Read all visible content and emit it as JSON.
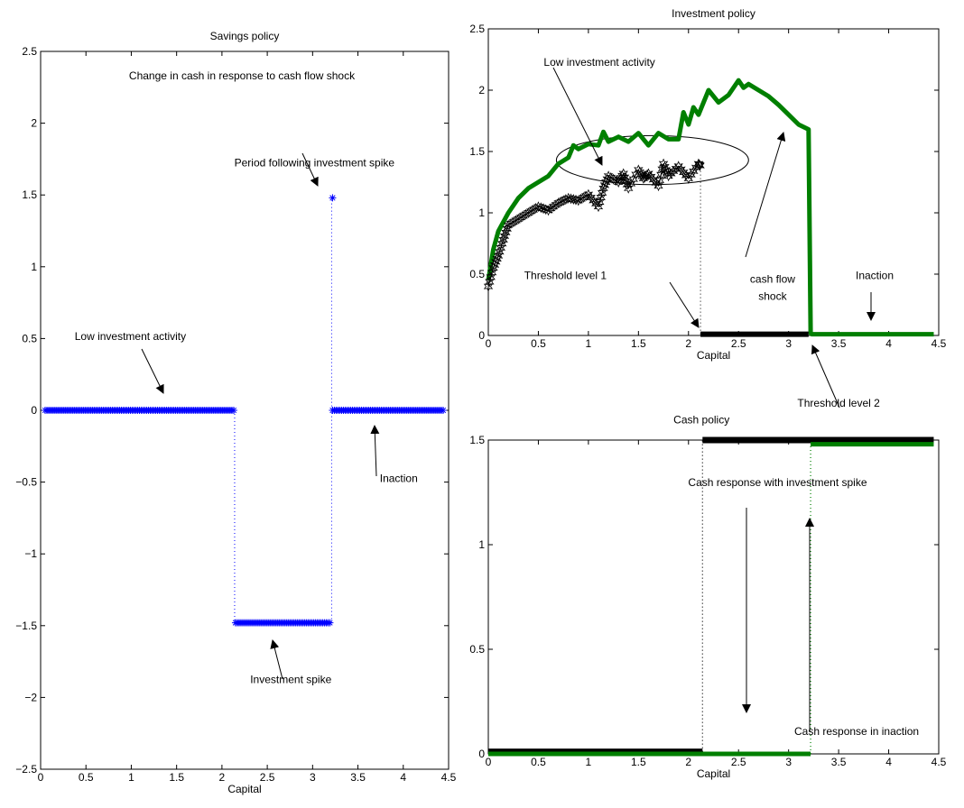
{
  "chart_data": [
    {
      "type": "scatter",
      "title": "Savings policy",
      "subtitle": "Change in cash in response to cash flow shock",
      "xlabel": "Capital",
      "ylabel": "",
      "xlim": [
        0,
        4.5
      ],
      "ylim": [
        -2.5,
        2.5
      ],
      "xticks": [
        "0",
        "0.5",
        "1",
        "1.5",
        "2",
        "2.5",
        "3",
        "3.5",
        "4",
        "4.5"
      ],
      "yticks": [
        "2.5",
        "2",
        "1.5",
        "1",
        "0.5",
        "0",
        "−0.5",
        "−1",
        "−1.5",
        "−2",
        "−2.5"
      ],
      "marker": "*",
      "color": "#0000ff",
      "segments": [
        {
          "x0": 0.05,
          "x1": 2.13,
          "y": 0
        },
        {
          "x0": 2.15,
          "x1": 3.2,
          "y": -1.48
        },
        {
          "x0": 3.22,
          "x1": 4.45,
          "y": 0
        }
      ],
      "points": [
        [
          3.22,
          1.48
        ]
      ],
      "dotted_lines": [
        {
          "x": 2.14,
          "y0": 0,
          "y1": -1.48
        },
        {
          "x": 3.21,
          "y0": -1.48,
          "y1": 1.48
        }
      ],
      "annotations": [
        {
          "text": "Period following investment spike",
          "x": 3.02,
          "y": 1.7
        },
        {
          "text": "Low investment activity",
          "x": 0.99,
          "y": 0.49
        },
        {
          "text": "Investment spike",
          "x": 2.76,
          "y": -1.9
        },
        {
          "text": "Inaction",
          "x": 3.95,
          "y": -0.5
        }
      ],
      "grid": false
    },
    {
      "type": "line",
      "title": "Investment policy",
      "xlabel": "Capital",
      "ylabel": "",
      "xlim": [
        0,
        4.5
      ],
      "ylim": [
        0,
        2.5
      ],
      "xticks": [
        "0",
        "0.5",
        "1",
        "1.5",
        "2",
        "2.5",
        "3",
        "3.5",
        "4",
        "4.5"
      ],
      "yticks": [
        "2.5",
        "2",
        "1.5",
        "1",
        "0.5",
        "0"
      ],
      "series": [
        {
          "color": "#007f00",
          "x": [
            0.0,
            0.05,
            0.1,
            0.2,
            0.3,
            0.4,
            0.5,
            0.6,
            0.7,
            0.8,
            0.85,
            0.9,
            1.0,
            1.1,
            1.15,
            1.2,
            1.3,
            1.4,
            1.5,
            1.6,
            1.7,
            1.8,
            1.9,
            1.95,
            2.0,
            2.05,
            2.1,
            2.2,
            2.3,
            2.4,
            2.5,
            2.55,
            2.6,
            2.7,
            2.8,
            2.9,
            3.0,
            3.1,
            3.2,
            3.22,
            3.23,
            4.45
          ],
          "values": [
            0.45,
            0.7,
            0.85,
            1.0,
            1.12,
            1.2,
            1.25,
            1.3,
            1.4,
            1.45,
            1.55,
            1.52,
            1.56,
            1.55,
            1.66,
            1.58,
            1.62,
            1.58,
            1.65,
            1.55,
            1.65,
            1.6,
            1.6,
            1.82,
            1.72,
            1.86,
            1.8,
            2.0,
            1.9,
            1.96,
            2.08,
            2.02,
            2.05,
            2.0,
            1.95,
            1.88,
            1.8,
            1.72,
            1.68,
            0.02,
            0.01,
            0.01
          ],
          "width": 5
        },
        {
          "color": "#000000",
          "marker": "hexagram",
          "x": [
            0.0,
            0.05,
            0.1,
            0.15,
            0.2,
            0.3,
            0.4,
            0.5,
            0.6,
            0.7,
            0.8,
            0.9,
            1.0,
            1.1,
            1.15,
            1.2,
            1.3,
            1.35,
            1.4,
            1.5,
            1.55,
            1.6,
            1.7,
            1.75,
            1.8,
            1.9,
            2.0,
            2.1,
            2.12
          ],
          "values": [
            0.4,
            0.55,
            0.65,
            0.78,
            0.9,
            0.95,
            1.0,
            1.05,
            1.02,
            1.08,
            1.12,
            1.1,
            1.15,
            1.05,
            1.2,
            1.3,
            1.25,
            1.32,
            1.2,
            1.35,
            1.28,
            1.32,
            1.22,
            1.4,
            1.3,
            1.38,
            1.28,
            1.4,
            1.38
          ],
          "width": 1.2
        },
        {
          "color": "#000000",
          "x": [
            2.12,
            3.2
          ],
          "values": [
            0.01,
            0.01
          ],
          "width": 6
        }
      ],
      "dotted_lines": [
        {
          "x": 2.12,
          "y0": 0.01,
          "y1": 1.38
        }
      ],
      "ellipse": {
        "cx": 1.64,
        "cy": 1.43,
        "rx": 0.96,
        "ry": 0.2
      },
      "annotations": [
        {
          "text": "Low investment activity",
          "x": 1.11,
          "y": 2.2
        },
        {
          "text": "Threshold level 1",
          "x": 0.77,
          "y": 0.46
        },
        {
          "text": "cash flow",
          "x": 2.84,
          "y": 0.43
        },
        {
          "text": "shock",
          "x": 2.84,
          "y": 0.29
        },
        {
          "text": "Inaction",
          "x": 3.86,
          "y": 0.46
        }
      ],
      "grid": false
    },
    {
      "type": "line",
      "title": "Cash policy",
      "xlabel": "Capital",
      "ylabel": "",
      "xlim": [
        0,
        4.5
      ],
      "ylim": [
        0,
        1.5
      ],
      "xticks": [
        "0",
        "0.5",
        "1",
        "1.5",
        "2",
        "2.5",
        "3",
        "3.5",
        "4",
        "4.5"
      ],
      "yticks": [
        "1.5",
        "1",
        "0.5",
        "0"
      ],
      "series": [
        {
          "color": "#000000",
          "x": [
            0.0,
            2.14,
            2.14,
            4.45
          ],
          "values": [
            0.01,
            0.01,
            1.5,
            1.5
          ],
          "width": 7
        },
        {
          "color": "#007f00",
          "x": [
            0.0,
            3.22,
            3.22,
            4.45
          ],
          "values": [
            0.0,
            0.0,
            1.48,
            1.48
          ],
          "width": 5
        }
      ],
      "dotted_lines": [
        {
          "x": 2.14,
          "y0": 0.01,
          "y1": 1.5,
          "color": "#000000"
        },
        {
          "x": 3.22,
          "y0": 0.0,
          "y1": 1.48,
          "color": "#007f00"
        }
      ],
      "annotations": [
        {
          "text": "Cash policy",
          "x": 2.13,
          "y": 1.58
        },
        {
          "text": "Threshold level 2",
          "x": 3.5,
          "y": 1.66
        },
        {
          "text": "Cash response with investment spike",
          "x": 2.89,
          "y": 1.28
        },
        {
          "text": "Cash response in inaction",
          "x": 3.68,
          "y": 0.09
        }
      ],
      "grid": false
    }
  ]
}
